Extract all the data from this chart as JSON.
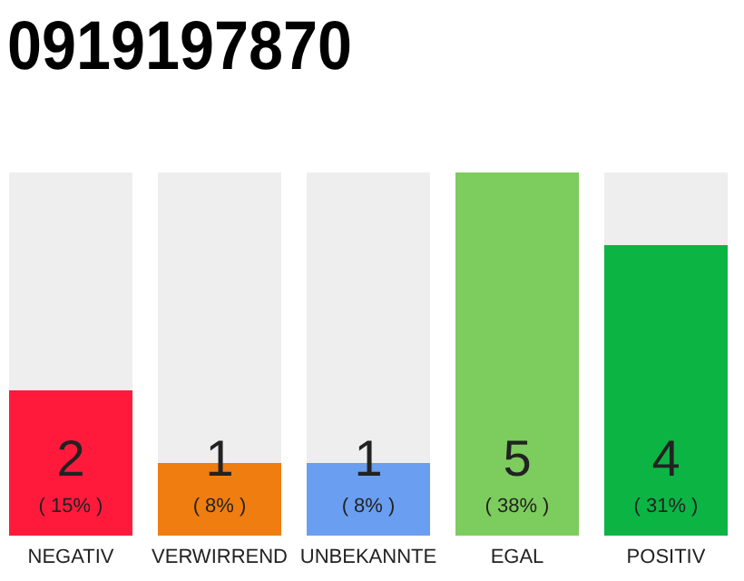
{
  "chart_data": {
    "type": "bar",
    "title": "0919197870",
    "categories": [
      "NEGATIV",
      "VERWIRREND",
      "UNBEKANNTE",
      "EGAL",
      "POSITIV"
    ],
    "stacked": true,
    "ylim": [
      0,
      5
    ],
    "tick_labels": "x",
    "series": [
      {
        "colors": [
          "#ff1a3c",
          "#f07d10",
          "#6a9ef0",
          "#7dcc5e",
          "#0cb444"
        ],
        "values": [
          2,
          1,
          1,
          5,
          4
        ],
        "value_labels": [
          "2",
          "1",
          "1",
          "5",
          "4"
        ]
      },
      {
        "color": "#eeeeee",
        "values": [
          3,
          4,
          4,
          0,
          1
        ]
      }
    ],
    "annotations": [
      "( 15% )",
      "( 8% )",
      "( 8% )",
      "( 38% )",
      "( 31% )"
    ]
  }
}
